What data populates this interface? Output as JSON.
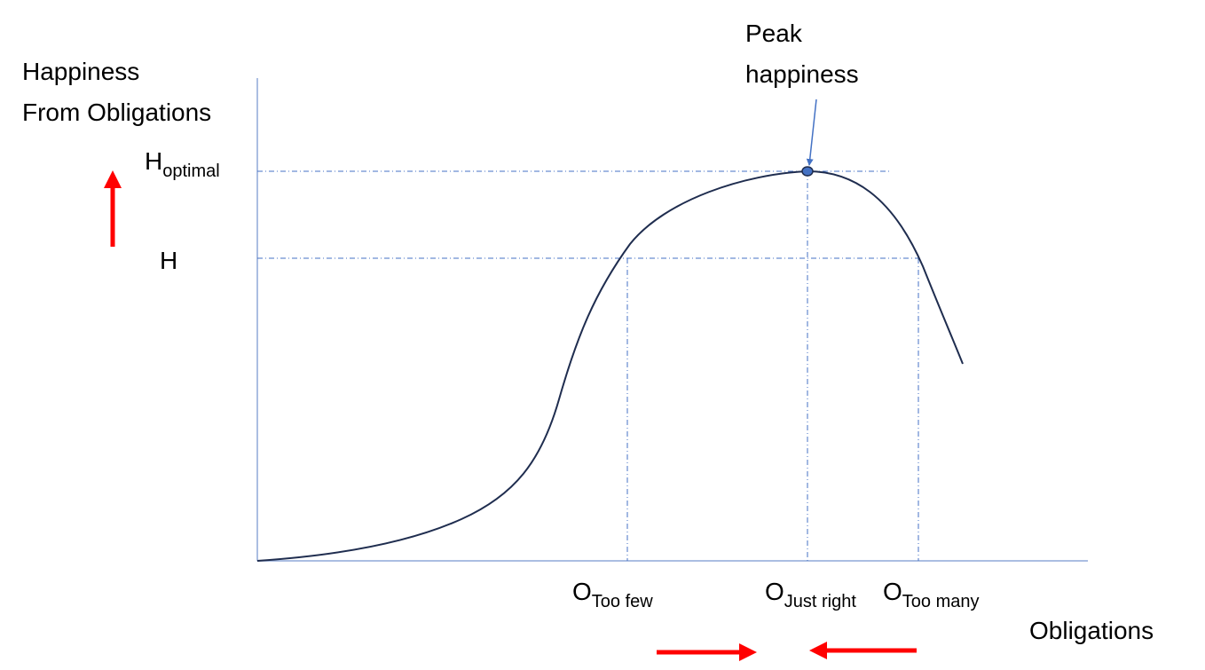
{
  "y_axis": {
    "label": [
      "Happiness",
      "From Obligations"
    ]
  },
  "x_axis": {
    "label": "Obligations"
  },
  "y_markers": [
    {
      "base": "H",
      "subscript": "optimal"
    },
    {
      "base": "H"
    }
  ],
  "x_markers": [
    {
      "base": "O",
      "subscript": "Too few"
    },
    {
      "base": "O",
      "subscript": "Just right"
    },
    {
      "base": "O",
      "subscript": "Too many"
    }
  ],
  "annotation": [
    "Peak",
    "happiness"
  ]
}
